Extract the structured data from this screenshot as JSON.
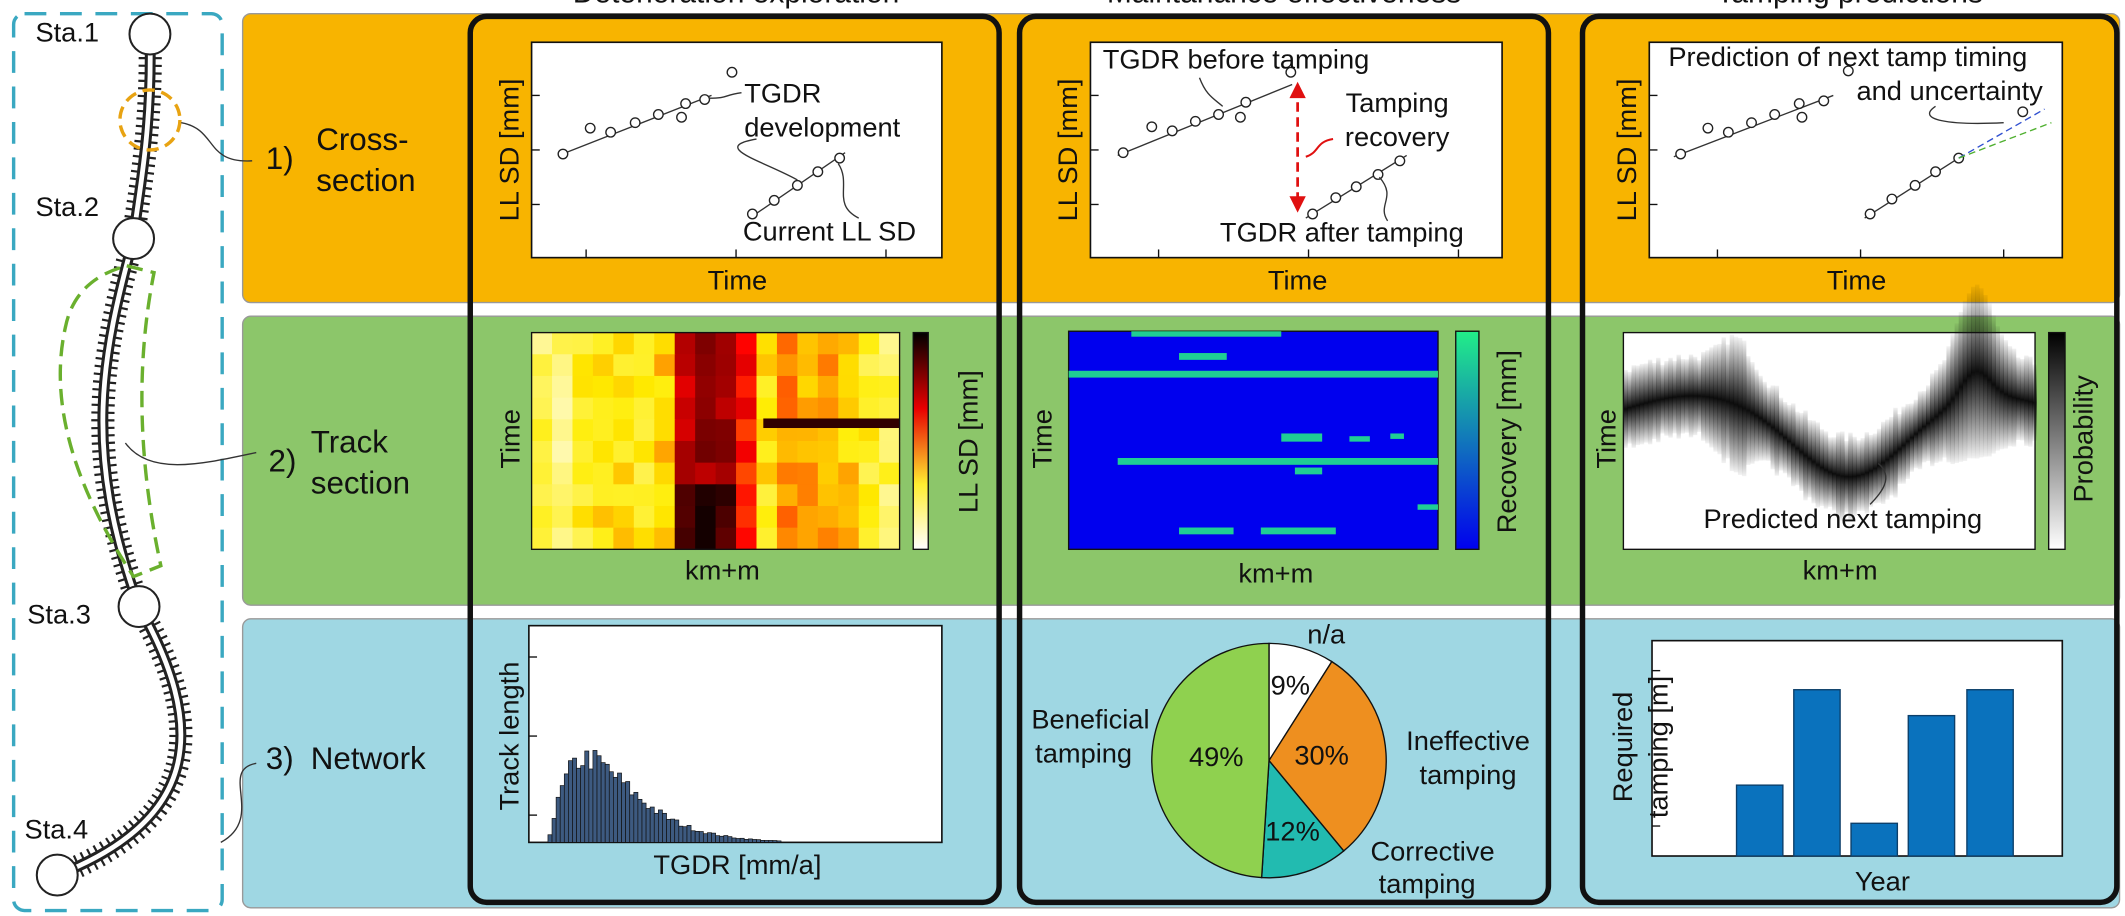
{
  "columns": [
    "Deterioration exploration",
    "Maintanance effectiveness",
    "Tamping predictions"
  ],
  "stations": [
    "Sta.1",
    "Sta.2",
    "Sta.3",
    "Sta.4"
  ],
  "rows": [
    {
      "number": "1)",
      "label": [
        "Cross-",
        "section"
      ]
    },
    {
      "number": "2)",
      "label": [
        "Track",
        "section"
      ]
    },
    {
      "number": "3)",
      "label": [
        "Network"
      ]
    }
  ],
  "cross_section": {
    "deterioration": {
      "y_label": "LL SD [mm]",
      "x_label": "Time",
      "annotations": [
        "TGDR",
        "development",
        "Current LL SD"
      ]
    },
    "effectiveness": {
      "y_label": "LL SD [mm]",
      "x_label": "Time",
      "annotations": [
        "TGDR before tamping",
        "Tamping",
        "recovery",
        "TGDR after tamping"
      ]
    },
    "prediction": {
      "y_label": "LL SD [mm]",
      "x_label": "Time",
      "annotations": [
        "Prediction of next tamp timing",
        "and uncertainty"
      ]
    }
  },
  "track_section": {
    "deterioration": {
      "y_label": "Time",
      "x_label": "km+m",
      "colorbar_label": "LL SD [mm]"
    },
    "effectiveness": {
      "y_label": "Time",
      "x_label": "km+m",
      "colorbar_label": "Recovery [mm]"
    },
    "prediction": {
      "y_label": "Time",
      "x_label": "km+m",
      "colorbar_label": "Probability",
      "annotation": "Predicted next tamping"
    }
  },
  "network": {
    "deterioration": {
      "y_label": "Track length",
      "x_label": "TGDR [mm/a]"
    },
    "effectiveness": {
      "slices": [
        {
          "label": [
            "n/a"
          ],
          "value": 9,
          "value_label": "9%",
          "color": "#ffffff"
        },
        {
          "label": [
            "Ineffective",
            "tamping"
          ],
          "value": 30,
          "value_label": "30%",
          "color": "#ee8f1f"
        },
        {
          "label": [
            "Corrective",
            "tamping"
          ],
          "value": 12,
          "value_label": "12%",
          "color": "#22bbb0"
        },
        {
          "label": [
            "Beneficial",
            "tamping"
          ],
          "value": 49,
          "value_label": "49%",
          "color": "#8fd14f"
        }
      ]
    },
    "prediction": {
      "y_label": [
        "Required",
        "tamping [m]"
      ],
      "x_label": "Year"
    }
  }
}
